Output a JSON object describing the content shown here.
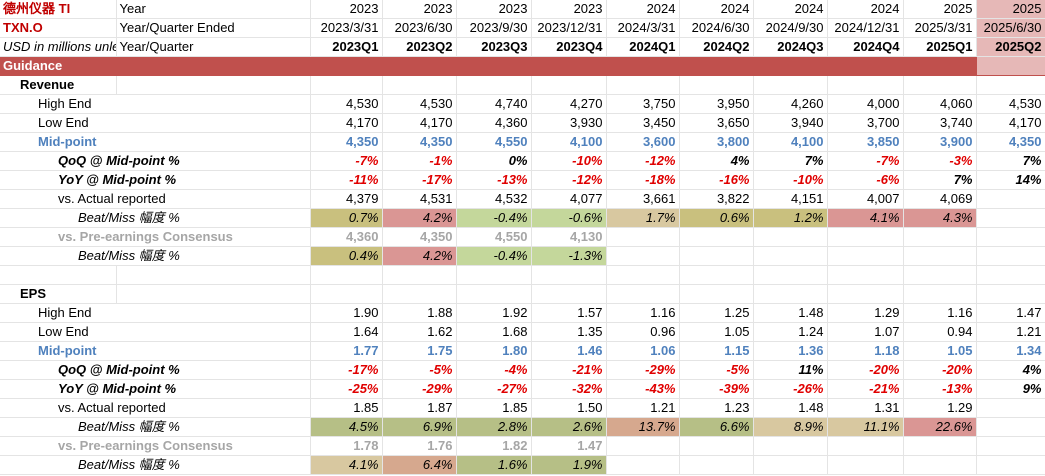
{
  "header": {
    "company": "德州仪器",
    "ticker": "TI",
    "ric": "TXN.O",
    "units": "USD in millions unless",
    "row1_label": "Year",
    "row2_label": "Year/Quarter Ended",
    "row3_label": "Year/Quarter"
  },
  "columns": [
    {
      "year": "2023",
      "ended": "2023/3/31",
      "quarter": "2023Q1"
    },
    {
      "year": "2023",
      "ended": "2023/6/30",
      "quarter": "2023Q2"
    },
    {
      "year": "2023",
      "ended": "2023/9/30",
      "quarter": "2023Q3"
    },
    {
      "year": "2023",
      "ended": "2023/12/31",
      "quarter": "2023Q4"
    },
    {
      "year": "2024",
      "ended": "2024/3/31",
      "quarter": "2024Q1"
    },
    {
      "year": "2024",
      "ended": "2024/6/30",
      "quarter": "2024Q2"
    },
    {
      "year": "2024",
      "ended": "2024/9/30",
      "quarter": "2024Q3"
    },
    {
      "year": "2024",
      "ended": "2024/12/31",
      "quarter": "2024Q4"
    },
    {
      "year": "2025",
      "ended": "2025/3/31",
      "quarter": "2025Q1"
    },
    {
      "year": "2025",
      "ended": "2025/6/30",
      "quarter": "2025Q2"
    }
  ],
  "section_guidance": "Guidance",
  "revenue": {
    "title": "Revenue",
    "high_end": {
      "label": "High End",
      "values": [
        "4,530",
        "4,530",
        "4,740",
        "4,270",
        "3,750",
        "3,950",
        "4,260",
        "4,000",
        "4,060",
        "4,530"
      ]
    },
    "low_end": {
      "label": "Low End",
      "values": [
        "4,170",
        "4,170",
        "4,360",
        "3,930",
        "3,450",
        "3,650",
        "3,940",
        "3,700",
        "3,740",
        "4,170"
      ]
    },
    "mid": {
      "label": "Mid-point",
      "values": [
        "4,350",
        "4,350",
        "4,550",
        "4,100",
        "3,600",
        "3,800",
        "4,100",
        "3,850",
        "3,900",
        "4,350"
      ]
    },
    "qoq": {
      "label": "QoQ @ Mid-point %",
      "values": [
        "-7%",
        "-1%",
        "0%",
        "-10%",
        "-12%",
        "4%",
        "7%",
        "-7%",
        "-3%",
        "7%"
      ]
    },
    "yoy": {
      "label": "YoY @ Mid-point %",
      "values": [
        "-11%",
        "-17%",
        "-13%",
        "-12%",
        "-18%",
        "-16%",
        "-10%",
        "-6%",
        "7%",
        "14%"
      ]
    },
    "actual": {
      "label": "vs. Actual reported",
      "values": [
        "4,379",
        "4,531",
        "4,532",
        "4,077",
        "3,661",
        "3,822",
        "4,151",
        "4,007",
        "4,069",
        ""
      ]
    },
    "beat1": {
      "label": "Beat/Miss 幅度 %",
      "values": [
        "0.7%",
        "4.2%",
        "-0.4%",
        "-0.6%",
        "1.7%",
        "0.6%",
        "1.2%",
        "4.1%",
        "4.3%",
        ""
      ]
    },
    "consensus": {
      "label": "vs. Pre-earnings Consensus",
      "values": [
        "4,360",
        "4,350",
        "4,550",
        "4,130",
        "",
        "",
        "",
        "",
        "",
        ""
      ]
    },
    "beat2": {
      "label": "Beat/Miss 幅度 %",
      "values": [
        "0.4%",
        "4.2%",
        "-0.4%",
        "-1.3%",
        "",
        "",
        "",
        "",
        "",
        ""
      ]
    }
  },
  "eps": {
    "title": "EPS",
    "high_end": {
      "label": "High End",
      "values": [
        "1.90",
        "1.88",
        "1.92",
        "1.57",
        "1.16",
        "1.25",
        "1.48",
        "1.29",
        "1.16",
        "1.47"
      ]
    },
    "low_end": {
      "label": "Low End",
      "values": [
        "1.64",
        "1.62",
        "1.68",
        "1.35",
        "0.96",
        "1.05",
        "1.24",
        "1.07",
        "0.94",
        "1.21"
      ]
    },
    "mid": {
      "label": "Mid-point",
      "values": [
        "1.77",
        "1.75",
        "1.80",
        "1.46",
        "1.06",
        "1.15",
        "1.36",
        "1.18",
        "1.05",
        "1.34"
      ]
    },
    "qoq": {
      "label": "QoQ @ Mid-point %",
      "values": [
        "-17%",
        "-5%",
        "-4%",
        "-21%",
        "-29%",
        "-5%",
        "11%",
        "-20%",
        "-20%",
        "4%"
      ]
    },
    "yoy": {
      "label": "YoY @ Mid-point %",
      "values": [
        "-25%",
        "-29%",
        "-27%",
        "-32%",
        "-43%",
        "-39%",
        "-26%",
        "-21%",
        "-13%",
        "9%"
      ]
    },
    "actual": {
      "label": "vs. Actual reported",
      "values": [
        "1.85",
        "1.87",
        "1.85",
        "1.50",
        "1.21",
        "1.23",
        "1.48",
        "1.31",
        "1.29",
        ""
      ]
    },
    "beat1": {
      "label": "Beat/Miss 幅度 %",
      "values": [
        "4.5%",
        "6.9%",
        "2.8%",
        "2.6%",
        "13.7%",
        "6.6%",
        "8.9%",
        "11.1%",
        "22.6%",
        ""
      ]
    },
    "consensus": {
      "label": "vs. Pre-earnings Consensus",
      "values": [
        "1.78",
        "1.76",
        "1.82",
        "1.47",
        "",
        "",
        "",
        "",
        "",
        ""
      ]
    },
    "beat2": {
      "label": "Beat/Miss 幅度 %",
      "values": [
        "4.1%",
        "6.4%",
        "1.6%",
        "1.9%",
        "",
        "",
        "",
        "",
        "",
        ""
      ]
    }
  },
  "colors": {
    "band": "#c0504d",
    "band_last": "#e6b8b7",
    "mid_blue": "#4f81bd",
    "negative": "#e00000",
    "beat_green": "#c4d79b",
    "miss_red": "#da9694"
  }
}
